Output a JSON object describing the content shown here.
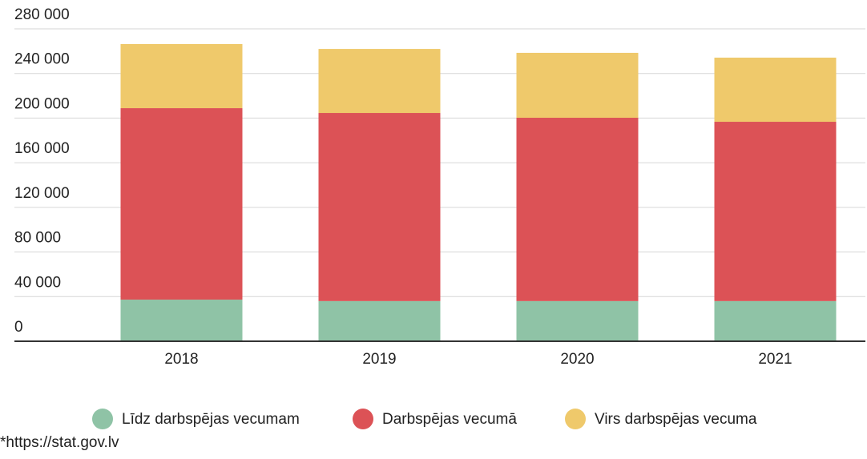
{
  "chart_data": {
    "type": "stacked_bar",
    "categories": [
      "2018",
      "2019",
      "2020",
      "2021"
    ],
    "series": [
      {
        "name": "Līdz darbspējas vecumam",
        "color": "#8fc3a6",
        "values": [
          37300,
          36000,
          36000,
          36000
        ]
      },
      {
        "name": "Darbspējas vecumā",
        "color": "#dc5256",
        "values": [
          171600,
          168600,
          164300,
          160700
        ]
      },
      {
        "name": "Virs darbspējas vecuma",
        "color": "#efc96b",
        "values": [
          57500,
          57400,
          58200,
          57500
        ]
      }
    ],
    "ylim": [
      0,
      280000
    ],
    "yticks": [
      0,
      {
        "value": 40000,
        "label": "40 000"
      },
      {
        "value": 80000,
        "label": "80 000"
      },
      {
        "value": 120000,
        "label": "120 000"
      },
      {
        "value": 160000,
        "label": "160 000"
      },
      {
        "value": 200000,
        "label": "200 000"
      },
      {
        "value": 240000,
        "label": "240 000"
      },
      {
        "value": 280000,
        "label": "280 000"
      }
    ],
    "grid": true,
    "legend": "bottom",
    "source": "*https://stat.gov.lv"
  }
}
